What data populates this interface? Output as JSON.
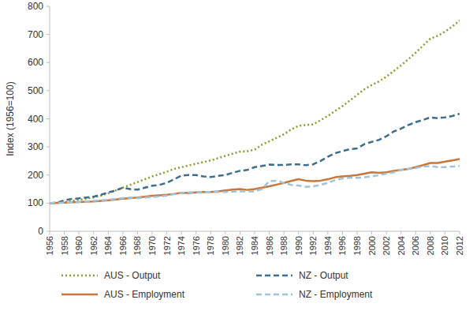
{
  "chart_data": {
    "type": "line",
    "ylabel": "Index (1956=100)",
    "x": [
      1956,
      1957,
      1958,
      1959,
      1960,
      1961,
      1962,
      1963,
      1964,
      1965,
      1966,
      1967,
      1968,
      1969,
      1970,
      1971,
      1972,
      1973,
      1974,
      1975,
      1976,
      1977,
      1978,
      1979,
      1980,
      1981,
      1982,
      1983,
      1984,
      1985,
      1986,
      1987,
      1988,
      1989,
      1990,
      1991,
      1992,
      1993,
      1994,
      1995,
      1996,
      1997,
      1998,
      1999,
      2000,
      2001,
      2002,
      2003,
      2004,
      2005,
      2006,
      2007,
      2008,
      2009,
      2010,
      2011,
      2012
    ],
    "series": [
      {
        "name": "AUS - Output",
        "color": "#8c9a2e",
        "line_style": "dotted",
        "values": [
          100,
          100,
          103,
          108,
          112,
          116,
          120,
          127,
          135,
          145,
          155,
          165,
          175,
          185,
          195,
          203,
          212,
          222,
          228,
          234,
          240,
          246,
          252,
          260,
          268,
          276,
          283,
          285,
          290,
          308,
          320,
          332,
          345,
          362,
          375,
          378,
          380,
          395,
          410,
          428,
          445,
          465,
          485,
          505,
          520,
          533,
          550,
          570,
          590,
          612,
          635,
          660,
          685,
          695,
          710,
          728,
          750
        ]
      },
      {
        "name": "NZ - Output",
        "color": "#3f6d8e",
        "line_style": "dashed",
        "values": [
          100,
          102,
          110,
          115,
          117,
          120,
          123,
          130,
          138,
          145,
          155,
          150,
          148,
          155,
          162,
          165,
          172,
          185,
          198,
          200,
          200,
          195,
          193,
          197,
          200,
          208,
          215,
          218,
          228,
          232,
          237,
          236,
          236,
          238,
          238,
          235,
          238,
          250,
          265,
          278,
          285,
          292,
          295,
          310,
          318,
          325,
          338,
          355,
          365,
          378,
          388,
          396,
          405,
          402,
          405,
          410,
          418
        ]
      },
      {
        "name": "AUS - Employment",
        "color": "#c8773a",
        "line_style": "solid",
        "values": [
          100,
          101,
          102,
          103,
          104,
          105,
          106,
          108,
          110,
          113,
          116,
          118,
          120,
          123,
          126,
          128,
          130,
          133,
          137,
          136,
          138,
          140,
          140,
          142,
          145,
          148,
          150,
          147,
          150,
          155,
          160,
          166,
          172,
          179,
          185,
          180,
          178,
          180,
          185,
          192,
          195,
          197,
          200,
          205,
          210,
          208,
          210,
          215,
          218,
          222,
          228,
          235,
          243,
          243,
          248,
          252,
          257
        ]
      },
      {
        "name": "NZ - Employment",
        "color": "#9fc4d8",
        "line_style": "dashed",
        "values": [
          100,
          101,
          102,
          103,
          104,
          106,
          108,
          110,
          112,
          115,
          118,
          120,
          118,
          120,
          122,
          124,
          127,
          132,
          136,
          138,
          139,
          140,
          140,
          140,
          140,
          141,
          142,
          142,
          142,
          150,
          178,
          180,
          172,
          165,
          163,
          158,
          160,
          165,
          172,
          182,
          188,
          190,
          190,
          192,
          195,
          200,
          205,
          210,
          218,
          222,
          225,
          230,
          232,
          228,
          228,
          230,
          232
        ]
      }
    ],
    "xlim": [
      1956,
      2012
    ],
    "xticks": [
      1956,
      1958,
      1960,
      1962,
      1964,
      1966,
      1968,
      1970,
      1972,
      1974,
      1976,
      1978,
      1980,
      1982,
      1984,
      1986,
      1988,
      1990,
      1992,
      1994,
      1996,
      1998,
      2000,
      2002,
      2004,
      2006,
      2008,
      2010,
      2012
    ],
    "ylim": [
      0,
      800
    ],
    "yticks": [
      0,
      100,
      200,
      300,
      400,
      500,
      600,
      700,
      800
    ],
    "grid": false,
    "legend": "bottom"
  }
}
